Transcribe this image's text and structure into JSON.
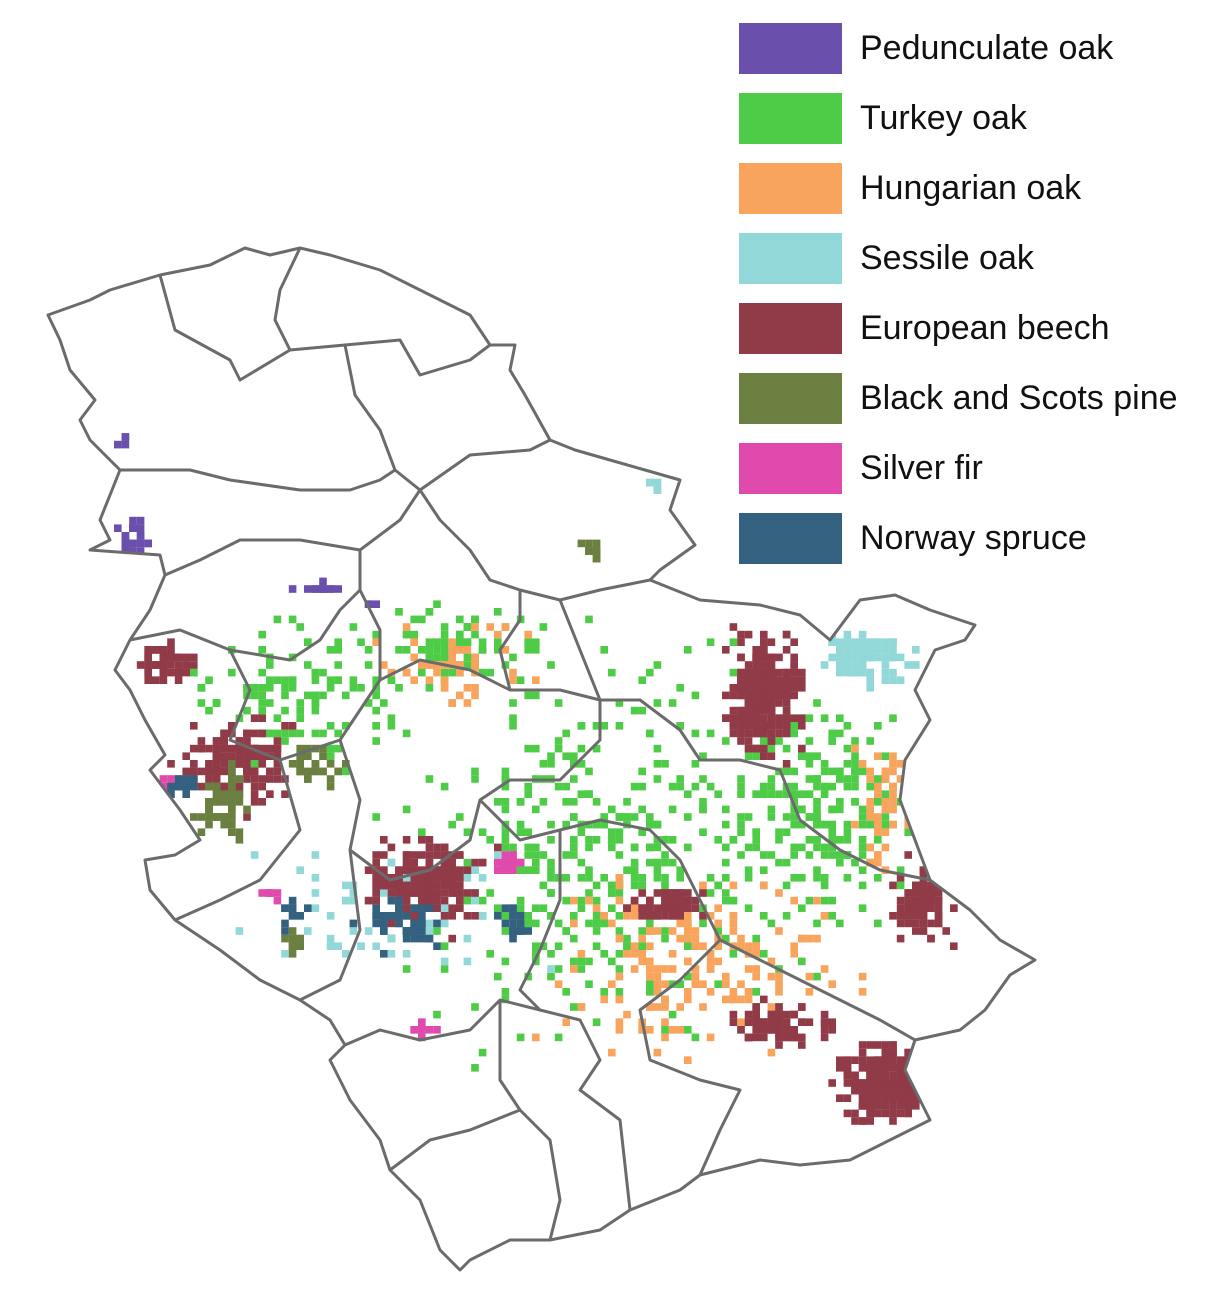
{
  "legend": {
    "items": [
      {
        "label": "Pedunculate oak",
        "color": "#6a4fac"
      },
      {
        "label": "Turkey oak",
        "color": "#4fcc47"
      },
      {
        "label": "Hungarian oak",
        "color": "#f8a45c"
      },
      {
        "label": "Sessile oak",
        "color": "#92d8d8"
      },
      {
        "label": "European beech",
        "color": "#913b48"
      },
      {
        "label": "Black and Scots pine",
        "color": "#6b8040"
      },
      {
        "label": "Silver fir",
        "color": "#e04aad"
      },
      {
        "label": "Norway spruce",
        "color": "#34617f"
      }
    ]
  }
}
